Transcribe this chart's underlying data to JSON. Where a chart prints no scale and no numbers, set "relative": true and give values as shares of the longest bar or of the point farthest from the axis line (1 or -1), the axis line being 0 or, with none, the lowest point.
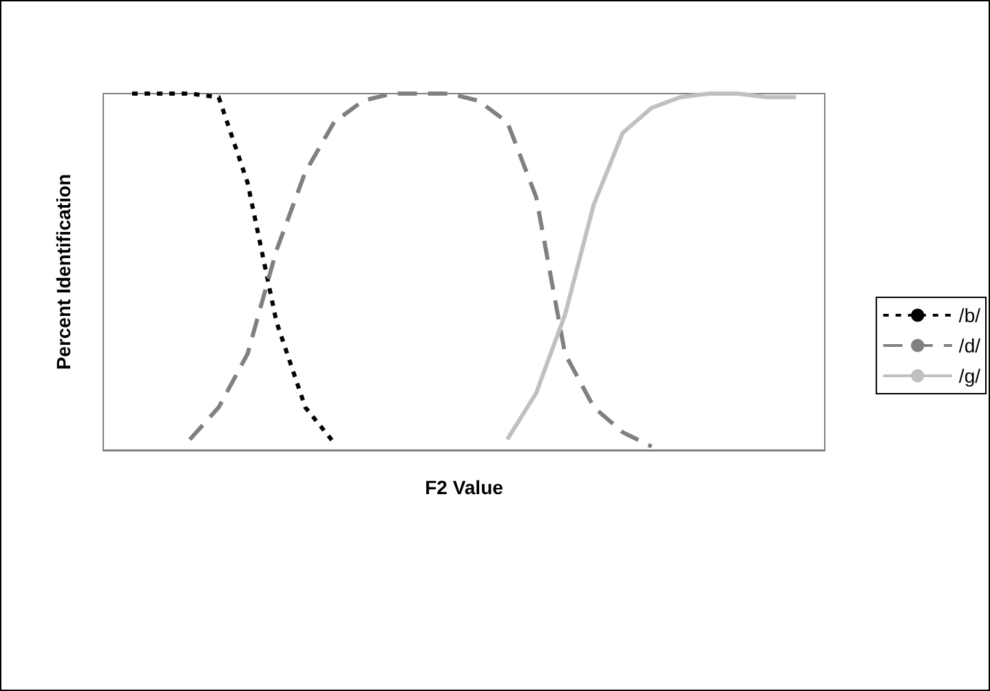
{
  "chart_data": {
    "type": "line",
    "xlabel": "F2 Value",
    "ylabel": "Percent Identification",
    "relative": true,
    "grid": false,
    "legend": "right",
    "marker": "none",
    "categories": [
      null,
      null,
      null,
      null,
      null,
      null,
      null,
      null,
      null,
      null,
      null,
      null,
      null,
      null,
      null,
      null,
      null,
      null,
      null,
      null,
      null,
      null,
      null,
      null,
      null,
      null
    ],
    "series": [
      {
        "name": "/b/",
        "color": "#000000",
        "line_style": "dotted",
        "values": [
          null,
          1.0,
          1.0,
          1.0,
          0.99,
          0.75,
          0.36,
          0.12,
          0.02,
          null,
          null,
          null,
          null,
          null,
          null,
          null,
          null,
          null,
          null,
          null,
          null,
          null,
          null,
          null,
          null,
          null
        ]
      },
      {
        "name": "/d/",
        "color": "#808080",
        "line_style": "dashed",
        "values": [
          null,
          null,
          null,
          0.03,
          0.12,
          0.27,
          0.56,
          0.78,
          0.92,
          0.98,
          1.0,
          1.0,
          1.0,
          0.98,
          0.92,
          0.71,
          0.27,
          0.12,
          0.05,
          0.01,
          null,
          null,
          null,
          null,
          null,
          null
        ]
      },
      {
        "name": "/g/",
        "color": "#c0c0c0",
        "line_style": "solid",
        "values": [
          null,
          null,
          null,
          null,
          null,
          null,
          null,
          null,
          null,
          null,
          null,
          null,
          null,
          null,
          0.03,
          0.16,
          0.38,
          0.69,
          0.89,
          0.96,
          0.99,
          1.0,
          1.0,
          0.99,
          0.99,
          null
        ]
      }
    ]
  }
}
